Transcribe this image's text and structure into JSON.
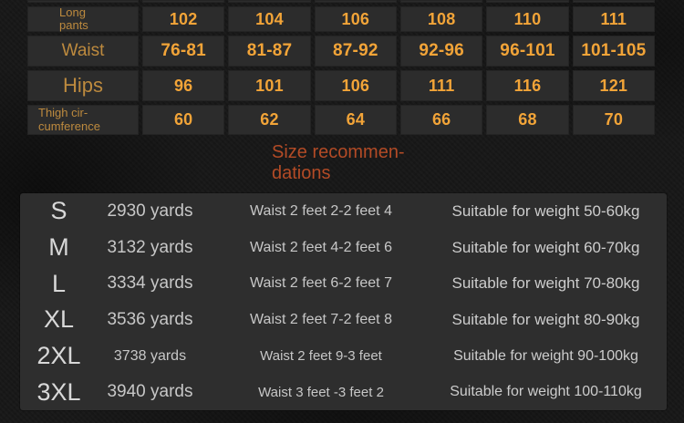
{
  "colors": {
    "background": "#181818",
    "table_cell_bg": "#2c2c2c",
    "table_label_orange": "#bd8a3e",
    "table_value_orange": "#f2a438",
    "heading_red_orange": "#b34b26",
    "panel_bg": "#2e2e2e",
    "panel_text": "#c7c7c7"
  },
  "size_table": {
    "rows": [
      {
        "label": "Long pants",
        "values": [
          "102",
          "104",
          "106",
          "108",
          "110",
          "111"
        ]
      },
      {
        "label": "Waist",
        "values": [
          "76-81",
          "81-87",
          "87-92",
          "92-96",
          "96-101",
          "101-105"
        ]
      },
      {
        "label": "Hips",
        "values": [
          "96",
          "101",
          "106",
          "111",
          "116",
          "121"
        ]
      },
      {
        "label": "Thigh cir-cumference",
        "values": [
          "60",
          "62",
          "64",
          "66",
          "68",
          "70"
        ]
      }
    ]
  },
  "recommendation_heading": {
    "line1": "Size recommen-",
    "line2": "dations"
  },
  "recommendations": {
    "rows": [
      {
        "size": "S",
        "yards": "2930 yards",
        "waist": "Waist 2 feet 2-2 feet 4",
        "weight": "Suitable for weight 50-60kg"
      },
      {
        "size": "M",
        "yards": "3132 yards",
        "waist": "Waist 2 feet 4-2 feet 6",
        "weight": "Suitable for weight 60-70kg"
      },
      {
        "size": "L",
        "yards": "3334 yards",
        "waist": "Waist 2 feet 6-2 feet 7",
        "weight": "Suitable for weight 70-80kg"
      },
      {
        "size": "XL",
        "yards": "3536 yards",
        "waist": "Waist 2 feet 7-2 feet 8",
        "weight": "Suitable for weight 80-90kg"
      },
      {
        "size": "2XL",
        "yards": "3738 yards",
        "waist": "Waist 2 feet 9-3 feet",
        "weight": "Suitable for weight 90-100kg"
      },
      {
        "size": "3XL",
        "yards": "3940 yards",
        "waist": "Waist 3 feet -3 feet 2",
        "weight": "Suitable for weight 100-110kg"
      }
    ]
  }
}
